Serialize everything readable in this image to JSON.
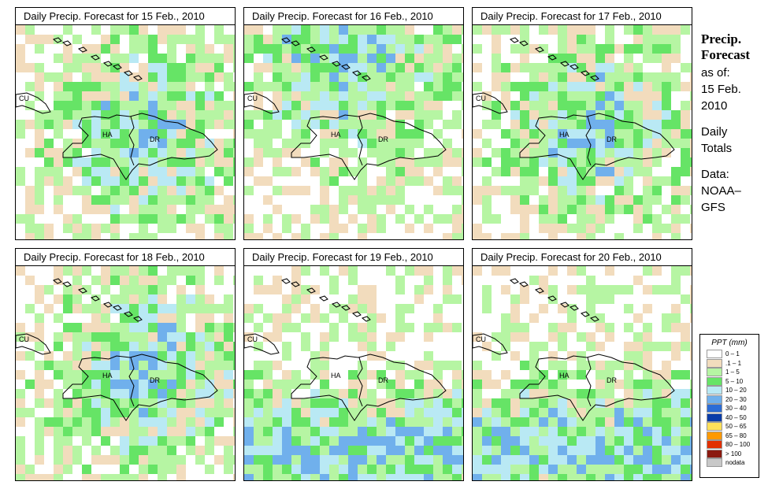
{
  "panels": [
    {
      "title": "Daily Precip. Forecast for  15 Feb., 2010",
      "seed": 11,
      "focus": "center"
    },
    {
      "title": "Daily Precip. Forecast for  16 Feb., 2010",
      "seed": 27,
      "focus": "north"
    },
    {
      "title": "Daily Precip. Forecast for  17 Feb., 2010",
      "seed": 43,
      "focus": "east"
    },
    {
      "title": "Daily Precip. Forecast for  18 Feb., 2010",
      "seed": 59,
      "focus": "center"
    },
    {
      "title": "Daily Precip. Forecast for  19 Feb., 2010",
      "seed": 71,
      "focus": "south"
    },
    {
      "title": "Daily Precip. Forecast for  20 Feb., 2010",
      "seed": 83,
      "focus": "south"
    }
  ],
  "map_labels": {
    "cu": "CU",
    "ha": "HA",
    "dr": "DR"
  },
  "sidebar": {
    "title_line1": "Precip.",
    "title_line2": "Forecast",
    "asof": "as of:",
    "date_line1": "15 Feb.",
    "date_line2": "2010",
    "daily_line1": "Daily",
    "daily_line2": "Totals",
    "data_line1": "Data:",
    "data_line2": "NOAA–",
    "data_line3": "GFS"
  },
  "legend": {
    "title": "PPT (mm)",
    "items": [
      {
        "label": "0 – 1",
        "color": "#ffffff"
      },
      {
        "label": ".1 – 1",
        "color": "#f2dcbd"
      },
      {
        "label": "1 – 5",
        "color": "#b6f5a3"
      },
      {
        "label": "5 – 10",
        "color": "#66e466"
      },
      {
        "label": "10 – 20",
        "color": "#b9e9f4"
      },
      {
        "label": "20 – 30",
        "color": "#70b0ec"
      },
      {
        "label": "30 – 40",
        "color": "#2b6cd6"
      },
      {
        "label": "40 – 50",
        "color": "#0a3ca8"
      },
      {
        "label": "50 – 65",
        "color": "#ffe05a"
      },
      {
        "label": "65 – 80",
        "color": "#ff9900"
      },
      {
        "label": "80 – 100",
        "color": "#e23000"
      },
      {
        "label": "> 100",
        "color": "#8b1a10"
      },
      {
        "label": "nodata",
        "color": "#c8c8c8"
      }
    ]
  }
}
